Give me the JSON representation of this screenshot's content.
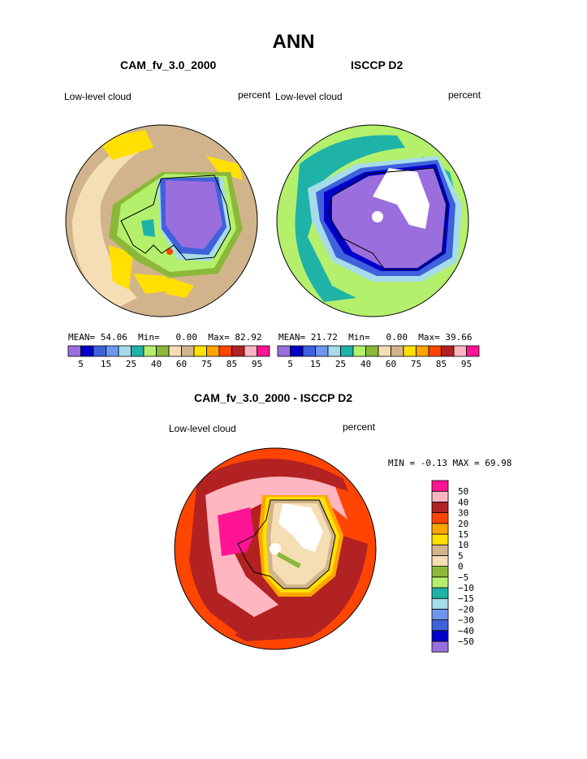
{
  "page": {
    "title": "ANN"
  },
  "panels": [
    {
      "id": "model",
      "title": "CAM_fv_3.0_2000",
      "left_label": "Low-level cloud",
      "right_label": "percent",
      "stats": {
        "mean_label": "MEAN=",
        "mean": "54.06",
        "min_label": "Min=",
        "min": "0.00",
        "max_label": "Max=",
        "max": "82.92"
      }
    },
    {
      "id": "obs",
      "title": "ISCCP D2",
      "left_label": "Low-level cloud",
      "right_label": "percent",
      "stats": {
        "mean_label": "MEAN=",
        "mean": "21.72",
        "min_label": "Min=",
        "min": "0.00",
        "max_label": "Max=",
        "max": "39.66"
      }
    },
    {
      "id": "diff",
      "title": "CAM_fv_3.0_2000 - ISCCP D2",
      "left_label": "Low-level cloud",
      "right_label": "percent",
      "stats_text": "MIN =  -0.13 MAX =  69.98"
    }
  ],
  "colorbar_abs": {
    "colors": [
      "#9b6ede",
      "#0000c8",
      "#3f62dc",
      "#6e96ee",
      "#a6dcea",
      "#1fb3a8",
      "#b4f06c",
      "#8cb83a",
      "#f5deb3",
      "#d2b48c",
      "#ffe000",
      "#ffa500",
      "#ff4500",
      "#b22222",
      "#ffb6c1",
      "#ff1493"
    ],
    "tick_labels": [
      "5",
      "15",
      "25",
      "40",
      "60",
      "75",
      "85",
      "95"
    ]
  },
  "colorbar_diff": {
    "colors": [
      "#9b6ede",
      "#0000c8",
      "#3f62dc",
      "#6e96ee",
      "#a6dcea",
      "#1fb3a8",
      "#b4f06c",
      "#8cb83a",
      "#f5deb3",
      "#d2b48c",
      "#ffe000",
      "#ffa500",
      "#ff4500",
      "#b22222",
      "#ffb6c1",
      "#ff1493"
    ],
    "tick_labels": [
      "-50",
      "-40",
      "-30",
      "-20",
      "-15",
      "-10",
      "-5",
      "0",
      "5",
      "10",
      "15",
      "20",
      "30",
      "40",
      "50"
    ]
  },
  "map_colors": {
    "tan": "#d2b48c",
    "wheat": "#f5deb3",
    "yellow": "#ffe000",
    "purple": "#9b6ede",
    "lightgreen": "#b4f06c",
    "olive": "#8cb83a",
    "teal": "#1fb3a8",
    "paleblue": "#a6dcea",
    "blue": "#3f62dc",
    "navy": "#0000c8",
    "darkred": "#b22222",
    "orangered": "#ff4500",
    "pink": "#ffb6c1",
    "magenta": "#ff1493",
    "orange": "#ffa500",
    "white": "#ffffff"
  }
}
